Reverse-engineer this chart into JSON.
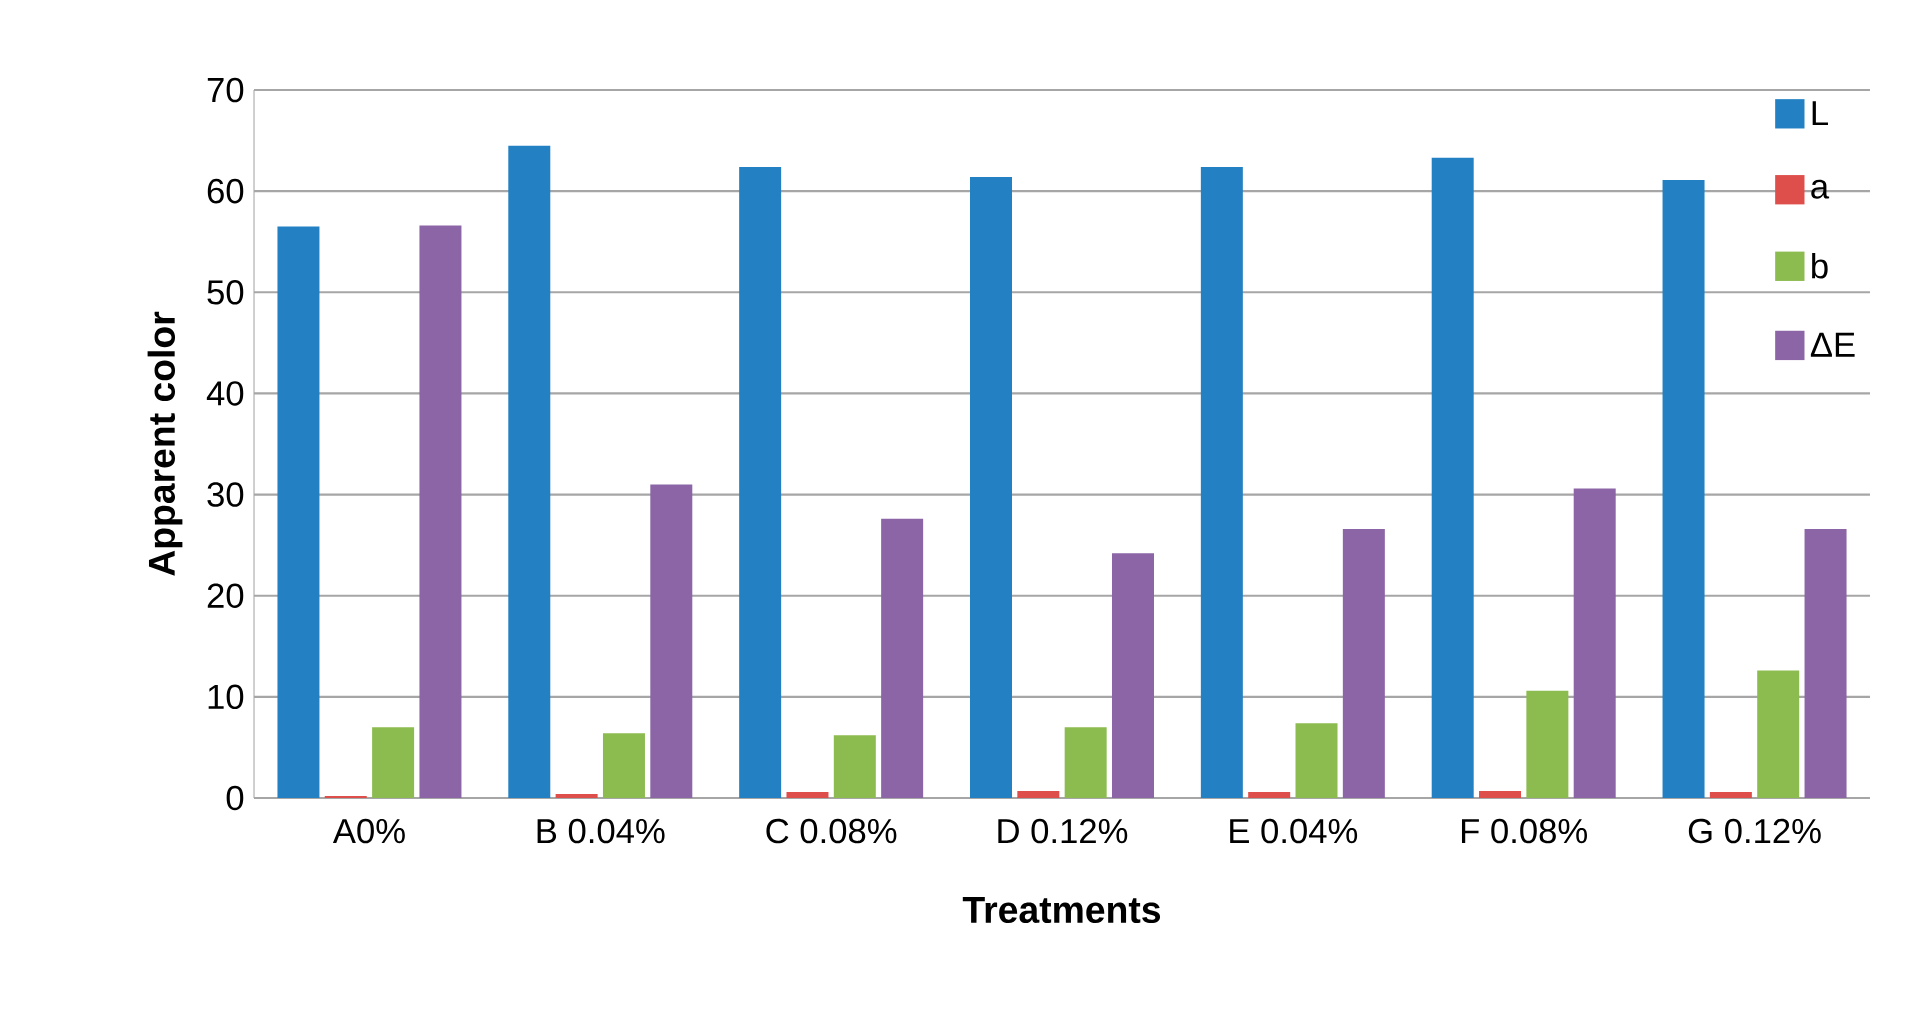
{
  "chart_data": {
    "type": "bar",
    "xlabel": "Treatments",
    "ylabel": "Apparent color",
    "categories": [
      "A0%",
      "B 0.04%",
      "C 0.08%",
      "D 0.12%",
      "E 0.04%",
      "F 0.08%",
      "G 0.12%"
    ],
    "series": [
      {
        "name": "L",
        "color": "#2381c3",
        "values": [
          56.5,
          64.5,
          62.4,
          61.4,
          62.4,
          63.3,
          61.1
        ]
      },
      {
        "name": "a",
        "color": "#de4f4b",
        "values": [
          0.2,
          0.4,
          0.6,
          0.7,
          0.6,
          0.7,
          0.6
        ]
      },
      {
        "name": "b",
        "color": "#8cbb4f",
        "values": [
          7.0,
          6.4,
          6.2,
          7.0,
          7.4,
          10.6,
          12.6
        ]
      },
      {
        "name": "ΔE",
        "color": "#8b65a6",
        "values": [
          56.6,
          31.0,
          27.6,
          24.2,
          26.6,
          30.6,
          26.6
        ]
      }
    ],
    "ylim": [
      0,
      70
    ],
    "yticks": [
      0,
      10,
      20,
      30,
      40,
      50,
      60,
      70
    ],
    "grid": "y",
    "legend": "top right"
  }
}
